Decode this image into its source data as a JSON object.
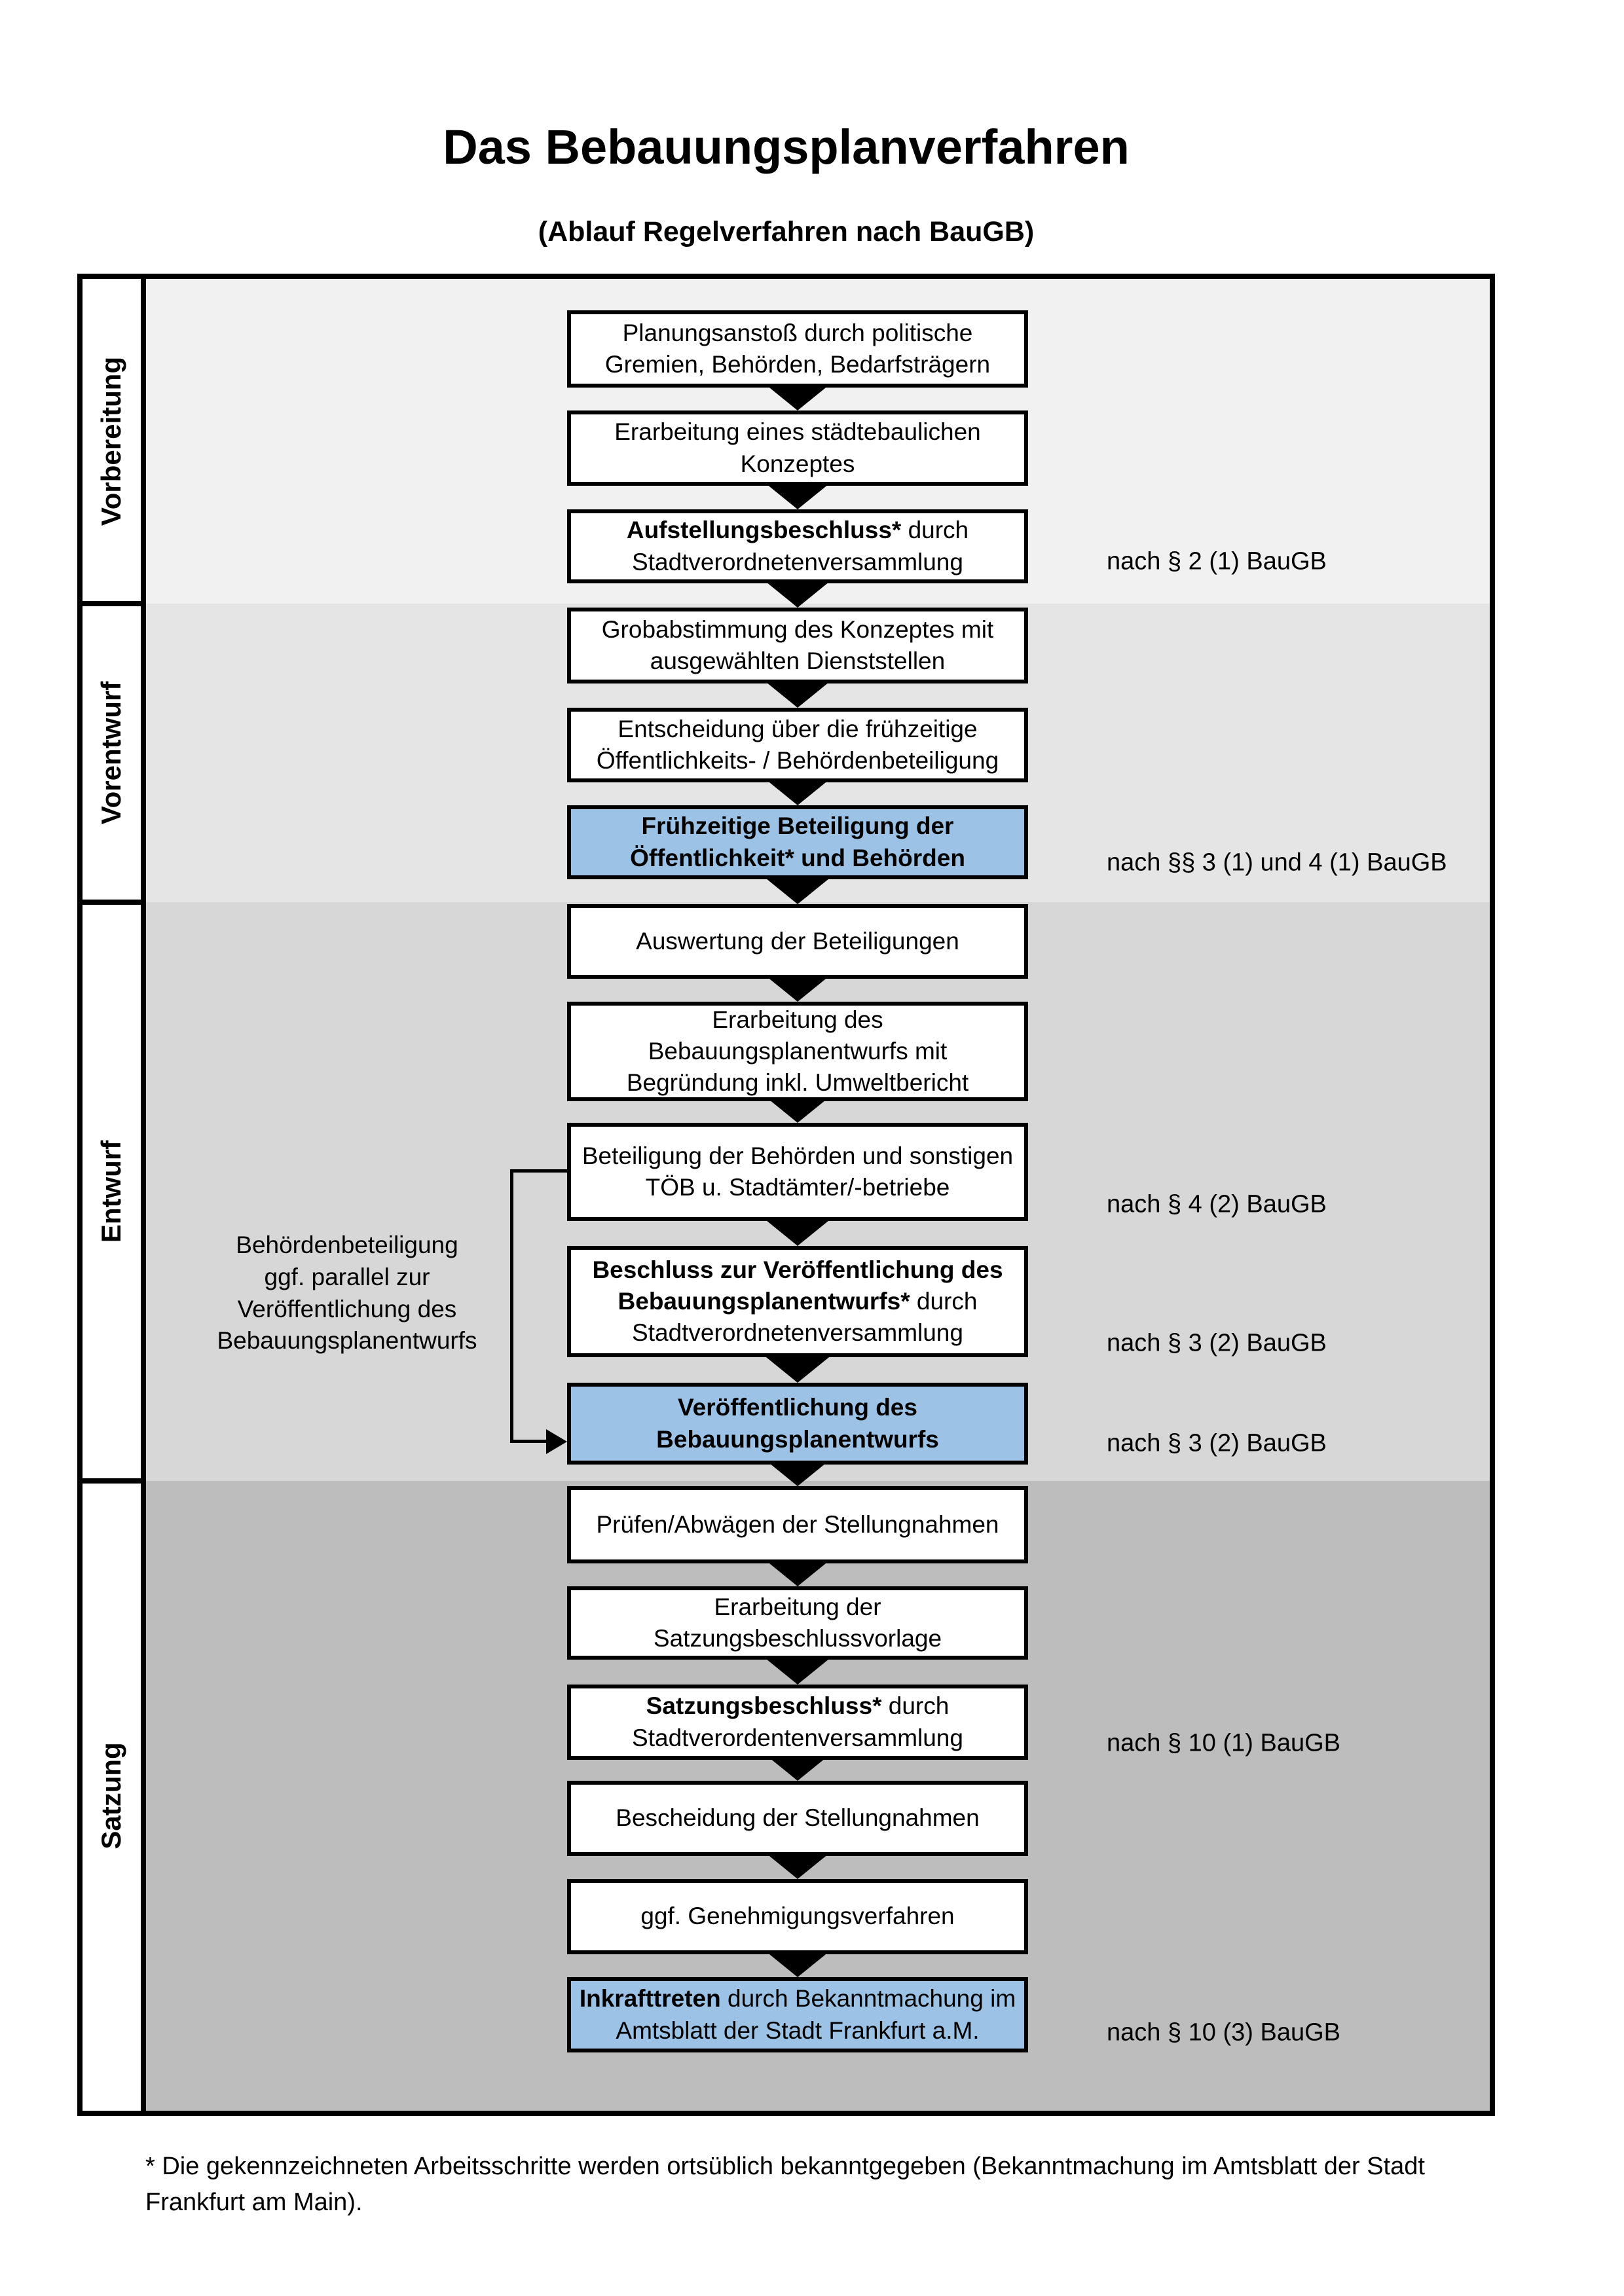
{
  "title": "Das Bebauungsplanverfahren",
  "subtitle": "(Ablauf Regelverfahren nach BauGB)",
  "phases": [
    {
      "label": "Vorbereitung"
    },
    {
      "label": "Vorentwurf"
    },
    {
      "label": "Entwurf"
    },
    {
      "label": "Satzung"
    }
  ],
  "steps": [
    {
      "bold": "",
      "text": "Planungsanstoß durch politische Gremien, Behörden, Bedarfsträgern",
      "highlight": false
    },
    {
      "bold": "",
      "text": "Erarbeitung eines städtebaulichen Konzeptes",
      "highlight": false
    },
    {
      "bold": "Aufstellungsbeschluss*",
      "text": " durch Stadtverordnetenversammlung",
      "highlight": false
    },
    {
      "bold": "",
      "text": "Grobabstimmung des Konzeptes mit ausgewählten Dienststellen",
      "highlight": false
    },
    {
      "bold": "",
      "text": "Entscheidung über die frühzeitige Öffentlichkeits- / Behördenbeteiligung",
      "highlight": false
    },
    {
      "bold": "Frühzeitige Beteiligung der Öffentlichkeit* und Behörden",
      "text": "",
      "highlight": true
    },
    {
      "bold": "",
      "text": "Auswertung der Beteiligungen",
      "highlight": false
    },
    {
      "bold": "",
      "text": "Erarbeitung des Bebauungsplanentwurfs mit Begründung inkl. Umweltbericht",
      "highlight": false
    },
    {
      "bold": "",
      "text": "Beteiligung der Behörden und sonstigen TÖB u. Stadtämter/-betriebe",
      "highlight": false
    },
    {
      "bold": "Beschluss zur Veröffentlichung des Bebauungsplanentwurfs*",
      "text": " durch Stadtverordnetenversammlung",
      "highlight": false
    },
    {
      "bold": "Veröffentlichung des Bebauungsplanentwurfs",
      "text": "",
      "highlight": true
    },
    {
      "bold": "",
      "text": "Prüfen/Abwägen der Stellungnahmen",
      "highlight": false
    },
    {
      "bold": "",
      "text": "Erarbeitung der Satzungsbeschlussvorlage",
      "highlight": false
    },
    {
      "bold": "Satzungsbeschluss*",
      "text": " durch Stadtverordentenversammlung",
      "highlight": false
    },
    {
      "bold": "",
      "text": "Bescheidung der Stellungnahmen",
      "highlight": false
    },
    {
      "bold": "",
      "text": "ggf. Genehmigungsverfahren",
      "highlight": false
    },
    {
      "bold": "Inkrafttreten",
      "text": " durch Bekanntmachung im Amtsblatt der Stadt Frankfurt a.M.",
      "highlight": true
    }
  ],
  "law_notes": [
    "nach § 2 (1) BauGB",
    "nach §§ 3 (1) und 4 (1) BauGB",
    "nach § 4 (2) BauGB",
    "nach § 3 (2) BauGB",
    "nach § 3 (2) BauGB",
    "nach § 10 (1) BauGB",
    "nach § 10 (3) BauGB"
  ],
  "side_note": {
    "lines": [
      "Behördenbeteiligung",
      "ggf. parallel zur",
      "Veröffentlichung des",
      "Bebauungsplanentwurfs"
    ]
  },
  "footnote": {
    "line1": "* Die gekennzeichneten Arbeitsschritte werden ortsüblich bekanntgegeben (Bekanntmachung im Amtsblatt  der Stadt",
    "line2": "Frankfurt am Main)."
  },
  "colors": {
    "highlight_blue": "#9cc2e5",
    "band_vorbereitung": "#f1f1f1",
    "band_vorentwurf": "#e5e5e5",
    "band_entwurf": "#d7d7d7",
    "band_satzung": "#bdbdbd",
    "box_border": "#000000"
  }
}
